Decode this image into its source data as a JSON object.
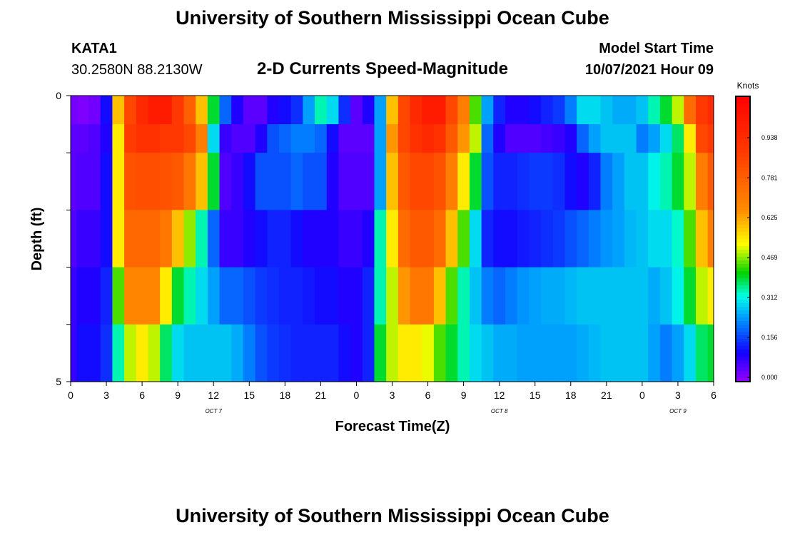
{
  "header": {
    "title": "University of Southern Mississippi Ocean Cube",
    "station_id": "KATA1",
    "coordinates": "30.2580N  88.2130W",
    "subtitle": "2-D Currents Speed-Magnitude",
    "model_start_label": "Model Start Time",
    "model_start_value": "10/07/2021 Hour 09"
  },
  "footer": {
    "title": "University of Southern Mississippi Ocean Cube"
  },
  "chart_data": {
    "type": "heatmap",
    "title": "2-D Currents Speed-Magnitude",
    "xlabel": "Forecast Time(Z)",
    "ylabel": "Depth (ft)",
    "x_tick_labels": [
      "0",
      "3",
      "6",
      "9",
      "12",
      "15",
      "18",
      "21",
      "0",
      "3",
      "6",
      "9",
      "12",
      "15",
      "18",
      "21",
      "0",
      "3",
      "6"
    ],
    "day_labels": [
      {
        "label": "OCT 7",
        "hour": 12
      },
      {
        "label": "OCT 8",
        "hour": 36
      },
      {
        "label": "OCT 9",
        "hour": 51
      }
    ],
    "x_range_hours": [
      0,
      54
    ],
    "y_range_ft": [
      0,
      5
    ],
    "y_tick_labels": [
      {
        "label": "0",
        "depth": 0
      },
      {
        "label": "5",
        "depth": 5
      }
    ],
    "depth_bands": 5,
    "colorbar": {
      "title": "Knots",
      "min": 0.0,
      "max": 1.1,
      "tick_labels": [
        "0.000",
        "0.156",
        "0.312",
        "0.469",
        "0.625",
        "0.781",
        "0.938"
      ],
      "tick_values": [
        0.0,
        0.156,
        0.312,
        0.469,
        0.625,
        0.781,
        0.938
      ]
    },
    "time_hours": [
      0,
      1,
      2,
      3,
      4,
      5,
      6,
      7,
      8,
      9,
      10,
      11,
      12,
      13,
      14,
      15,
      16,
      17,
      18,
      19,
      20,
      21,
      22,
      23,
      24,
      25,
      26,
      27,
      28,
      29,
      30,
      31,
      32,
      33,
      34,
      35,
      36,
      37,
      38,
      39,
      40,
      41,
      42,
      43,
      44,
      45,
      46,
      47,
      48,
      49,
      50,
      51,
      52,
      53,
      54
    ],
    "speed_knots_by_depth": [
      [
        0.03,
        0.02,
        0.03,
        0.12,
        0.6,
        0.85,
        0.95,
        1.0,
        1.0,
        0.9,
        0.78,
        0.6,
        0.4,
        0.2,
        0.1,
        0.05,
        0.05,
        0.1,
        0.12,
        0.15,
        0.25,
        0.35,
        0.3,
        0.15,
        0.05,
        0.1,
        0.25,
        0.6,
        0.85,
        0.95,
        1.0,
        1.0,
        0.85,
        0.7,
        0.45,
        0.25,
        0.14,
        0.1,
        0.1,
        0.12,
        0.14,
        0.16,
        0.22,
        0.3,
        0.3,
        0.28,
        0.26,
        0.26,
        0.28,
        0.35,
        0.4,
        0.5,
        0.75,
        0.9,
        0.95
      ],
      [
        0.05,
        0.05,
        0.06,
        0.1,
        0.55,
        0.88,
        0.92,
        0.92,
        0.9,
        0.9,
        0.85,
        0.7,
        0.3,
        0.08,
        0.06,
        0.06,
        0.1,
        0.18,
        0.2,
        0.22,
        0.22,
        0.2,
        0.12,
        0.05,
        0.05,
        0.05,
        0.25,
        0.65,
        0.85,
        0.92,
        0.95,
        0.92,
        0.8,
        0.65,
        0.5,
        0.2,
        0.1,
        0.06,
        0.06,
        0.06,
        0.07,
        0.08,
        0.1,
        0.2,
        0.25,
        0.28,
        0.28,
        0.28,
        0.22,
        0.25,
        0.3,
        0.38,
        0.55,
        0.85,
        0.9
      ],
      [
        0.05,
        0.06,
        0.06,
        0.12,
        0.55,
        0.82,
        0.83,
        0.83,
        0.82,
        0.8,
        0.72,
        0.6,
        0.4,
        0.06,
        0.08,
        0.12,
        0.18,
        0.18,
        0.18,
        0.2,
        0.18,
        0.18,
        0.1,
        0.06,
        0.06,
        0.06,
        0.25,
        0.6,
        0.8,
        0.85,
        0.85,
        0.82,
        0.7,
        0.55,
        0.4,
        0.18,
        0.14,
        0.14,
        0.15,
        0.16,
        0.16,
        0.15,
        0.12,
        0.1,
        0.14,
        0.22,
        0.25,
        0.28,
        0.28,
        0.32,
        0.35,
        0.4,
        0.5,
        0.7,
        0.8
      ],
      [
        0.06,
        0.08,
        0.08,
        0.12,
        0.55,
        0.76,
        0.76,
        0.76,
        0.72,
        0.6,
        0.48,
        0.35,
        0.2,
        0.08,
        0.08,
        0.1,
        0.12,
        0.14,
        0.14,
        0.12,
        0.1,
        0.1,
        0.1,
        0.08,
        0.08,
        0.1,
        0.35,
        0.55,
        0.75,
        0.8,
        0.8,
        0.75,
        0.6,
        0.45,
        0.3,
        0.14,
        0.12,
        0.12,
        0.13,
        0.14,
        0.15,
        0.16,
        0.18,
        0.2,
        0.22,
        0.24,
        0.25,
        0.27,
        0.28,
        0.3,
        0.3,
        0.34,
        0.45,
        0.6,
        0.7
      ],
      [
        0.08,
        0.1,
        0.1,
        0.14,
        0.45,
        0.68,
        0.68,
        0.68,
        0.55,
        0.4,
        0.35,
        0.3,
        0.25,
        0.2,
        0.2,
        0.18,
        0.16,
        0.15,
        0.14,
        0.14,
        0.13,
        0.12,
        0.12,
        0.1,
        0.1,
        0.14,
        0.35,
        0.5,
        0.65,
        0.72,
        0.72,
        0.6,
        0.45,
        0.35,
        0.28,
        0.22,
        0.2,
        0.22,
        0.24,
        0.25,
        0.26,
        0.26,
        0.27,
        0.28,
        0.28,
        0.28,
        0.28,
        0.28,
        0.28,
        0.26,
        0.28,
        0.32,
        0.4,
        0.5,
        0.55
      ],
      [
        0.08,
        0.12,
        0.12,
        0.15,
        0.35,
        0.5,
        0.55,
        0.5,
        0.38,
        0.3,
        0.28,
        0.28,
        0.28,
        0.28,
        0.26,
        0.22,
        0.18,
        0.16,
        0.15,
        0.14,
        0.14,
        0.14,
        0.14,
        0.12,
        0.1,
        0.14,
        0.4,
        0.5,
        0.55,
        0.55,
        0.52,
        0.45,
        0.4,
        0.35,
        0.3,
        0.28,
        0.26,
        0.26,
        0.25,
        0.25,
        0.25,
        0.25,
        0.25,
        0.26,
        0.27,
        0.28,
        0.28,
        0.28,
        0.28,
        0.25,
        0.22,
        0.25,
        0.3,
        0.38,
        0.4
      ]
    ]
  }
}
